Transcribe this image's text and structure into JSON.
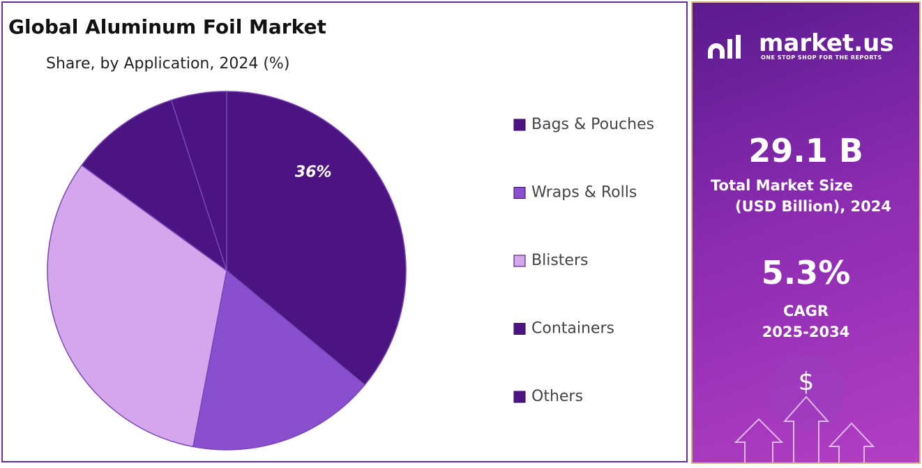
{
  "chart_data": {
    "type": "pie",
    "title": "Global Aluminum Foil Market",
    "subtitle": "Share, by Application, 2024 (%)",
    "categories": [
      "Bags & Pouches",
      "Wraps & Rolls",
      "Blisters",
      "Containers",
      "Others"
    ],
    "values": [
      36,
      17,
      32,
      10,
      5
    ],
    "value_labels": [
      "36%",
      null,
      null,
      null,
      null
    ],
    "colors": [
      "#4b1480",
      "#8a4fcf",
      "#d4a6ec",
      "#4b1480",
      "#4b1480"
    ],
    "legend": "right"
  },
  "side_panel": {
    "brand": "market.us",
    "tagline": "ONE STOP SHOP FOR THE REPORTS",
    "market_size": "29.1 B",
    "market_size_label_1": "Total Market Size",
    "market_size_label_2": "(USD Billion), 2024",
    "cagr": "5.3%",
    "cagr_label": "CAGR",
    "cagr_period": "2025-2034"
  }
}
